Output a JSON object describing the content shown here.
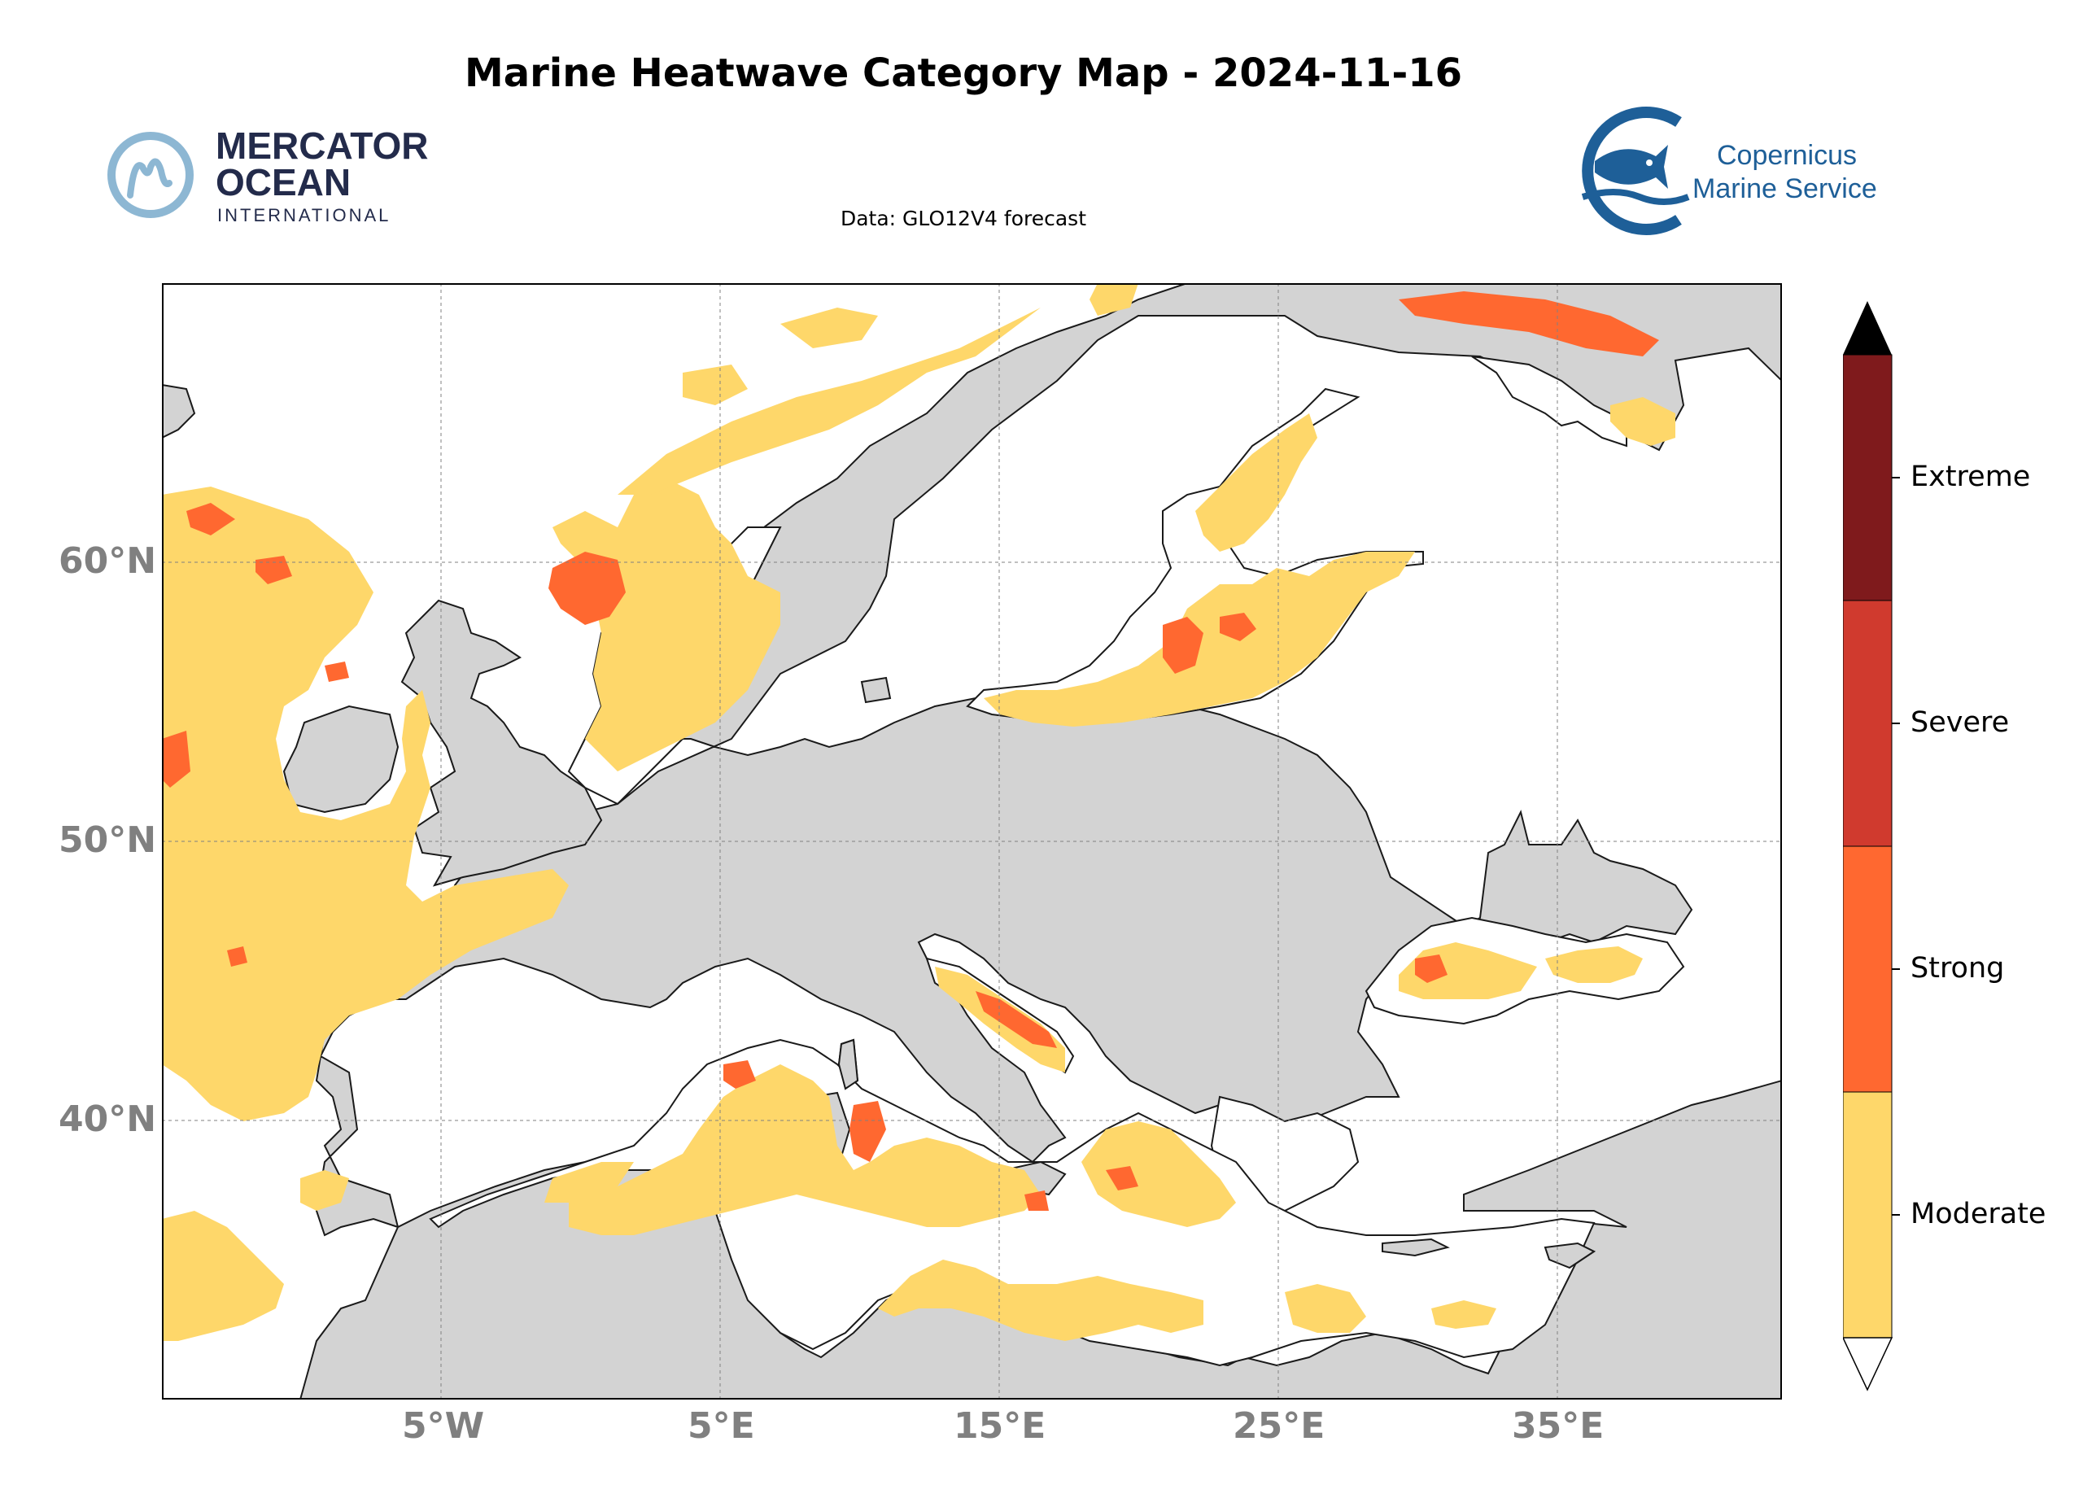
{
  "title": "Marine Heatwave Category Map - 2024-11-16",
  "subtitle": "Data: GLO12V4 forecast",
  "logos": {
    "mercator": {
      "line1": "MERCATOR",
      "line2": "OCEAN",
      "line3": "INTERNATIONAL",
      "color": "#232B4B",
      "mark_color": "#8DB7D3"
    },
    "copernicus": {
      "line1": "Copernicus",
      "line2": "Marine Service",
      "color": "#1E5F98"
    }
  },
  "map": {
    "type": "map",
    "projection": "PlateCarree",
    "lon_range": [
      -15,
      43
    ],
    "lat_range": [
      30,
      70
    ],
    "grid": true,
    "lat_ticks": [
      "60°N",
      "50°N",
      "40°N"
    ],
    "lon_ticks": [
      "5°W",
      "5°E",
      "15°E",
      "25°E",
      "35°E"
    ],
    "land_color": "#D3D3D3",
    "ocean_color": "#FFFFFF"
  },
  "legend": {
    "categories": [
      {
        "label": "Extreme",
        "color": "#7F1A1C"
      },
      {
        "label": "Severe",
        "color": "#D03A2E"
      },
      {
        "label": "Strong",
        "color": "#FF6830"
      },
      {
        "label": "Moderate",
        "color": "#FED76A"
      }
    ],
    "extend_max_color": "#000000",
    "extend_min_color": "#FFFFFF",
    "placement": "right"
  }
}
